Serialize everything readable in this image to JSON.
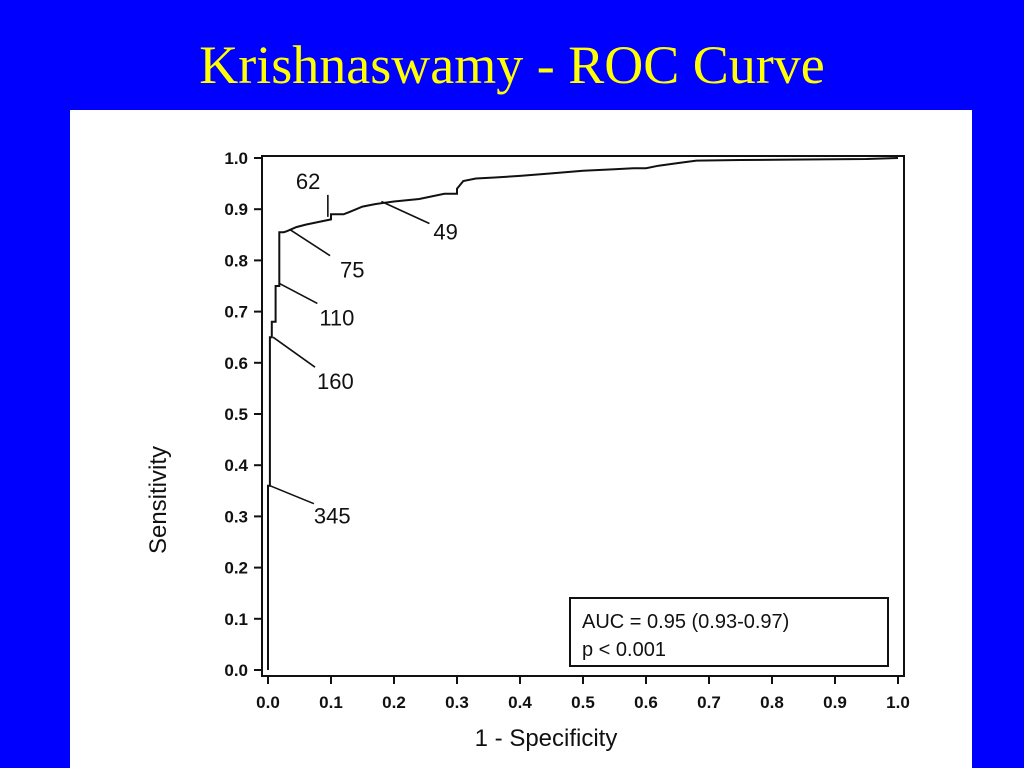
{
  "slide": {
    "title": "Krishnaswamy - ROC Curve",
    "background_color": "#0000ff",
    "title_color": "#ffff00"
  },
  "chart_data": {
    "type": "line",
    "title": "",
    "xlabel": "1 - Specificity",
    "ylabel": "Sensitivity",
    "xlim": [
      0,
      1
    ],
    "ylim": [
      0,
      1
    ],
    "xticks": [
      "0.0",
      "0.1",
      "0.2",
      "0.3",
      "0.4",
      "0.5",
      "0.6",
      "0.7",
      "0.8",
      "0.9",
      "1.0"
    ],
    "yticks": [
      "0.0",
      "0.1",
      "0.2",
      "0.3",
      "0.4",
      "0.5",
      "0.6",
      "0.7",
      "0.8",
      "0.9",
      "1.0"
    ],
    "grid": false,
    "series": [
      {
        "x": [
          0.0,
          0.0,
          0.0,
          0.003,
          0.003,
          0.006,
          0.006,
          0.012,
          0.012,
          0.018,
          0.018,
          0.025,
          0.03,
          0.045,
          0.06,
          0.08,
          0.1,
          0.1,
          0.12,
          0.13,
          0.15,
          0.17,
          0.2,
          0.24,
          0.28,
          0.3,
          0.3,
          0.31,
          0.33,
          0.36,
          0.4,
          0.45,
          0.5,
          0.55,
          0.58,
          0.6,
          0.62,
          0.65,
          0.68,
          0.75,
          0.85,
          0.95,
          1.0
        ],
        "y": [
          0.0,
          0.36,
          0.36,
          0.36,
          0.65,
          0.65,
          0.68,
          0.68,
          0.75,
          0.75,
          0.855,
          0.855,
          0.857,
          0.865,
          0.87,
          0.875,
          0.88,
          0.89,
          0.89,
          0.895,
          0.905,
          0.91,
          0.915,
          0.92,
          0.93,
          0.93,
          0.94,
          0.955,
          0.96,
          0.962,
          0.965,
          0.97,
          0.975,
          0.978,
          0.98,
          0.98,
          0.985,
          0.99,
          0.995,
          0.996,
          0.997,
          0.998,
          1.0
        ]
      }
    ],
    "annotations": [
      {
        "label": "62",
        "point": [
          0.095,
          0.885
        ]
      },
      {
        "label": "49",
        "point": [
          0.18,
          0.915
        ]
      },
      {
        "label": "75",
        "point": [
          0.035,
          0.86
        ]
      },
      {
        "label": "110",
        "point": [
          0.018,
          0.755
        ]
      },
      {
        "label": "160",
        "point": [
          0.008,
          0.65
        ]
      },
      {
        "label": "345",
        "point": [
          0.003,
          0.36
        ]
      }
    ],
    "legend_box": {
      "line1": "AUC = 0.95 (0.93-0.97)",
      "line2": "p < 0.001",
      "placement": "bottom-right"
    }
  }
}
